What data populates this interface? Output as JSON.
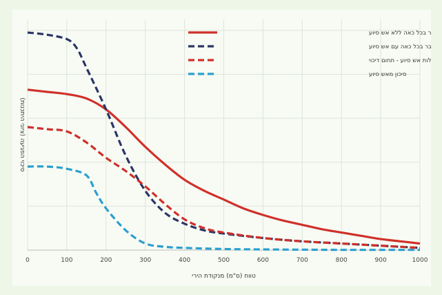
{
  "chart_data": {
    "type": "line",
    "xlabel": "טווח (ס\"מ) מנקודת הירי",
    "ylabel": "סיכוי הפגיעה (ציוני היתכנות)",
    "xlim": [
      0,
      1000
    ],
    "ylim": [
      0,
      1.05
    ],
    "x_ticks": [
      "0",
      "100",
      "200",
      "300",
      "400",
      "500",
      "600",
      "700",
      "800",
      "900",
      "1000"
    ],
    "grid": true,
    "legend_position": "top-right",
    "series": [
      {
        "name": "סיכון כתוצאה המצטבר בכל כאה ללא אש סיוע",
        "color": "#d0302a",
        "style": "solid",
        "x": [
          0,
          50,
          100,
          150,
          200,
          250,
          300,
          350,
          400,
          450,
          500,
          550,
          600,
          650,
          700,
          750,
          800,
          850,
          900,
          950,
          1000
        ],
        "y": [
          0.73,
          0.72,
          0.71,
          0.69,
          0.64,
          0.56,
          0.47,
          0.39,
          0.32,
          0.27,
          0.23,
          0.19,
          0.16,
          0.135,
          0.115,
          0.095,
          0.08,
          0.065,
          0.05,
          0.04,
          0.03
        ]
      },
      {
        "name": "סיכון כתוצאה המצטבר בכל כאה עם אש סיוע",
        "color": "#2b3566",
        "style": "dashed",
        "x": [
          0,
          50,
          100,
          125,
          150,
          200,
          250,
          300,
          350,
          400,
          450,
          500,
          600,
          700,
          800,
          900,
          1000
        ],
        "y": [
          0.99,
          0.98,
          0.96,
          0.92,
          0.83,
          0.64,
          0.43,
          0.27,
          0.17,
          0.12,
          0.09,
          0.075,
          0.055,
          0.04,
          0.03,
          0.02,
          0.01
        ]
      },
      {
        "name": "יעילות אש סיוע - תחום דיכוי",
        "color": "#d0302a",
        "style": "dashed",
        "x": [
          0,
          50,
          100,
          150,
          200,
          250,
          300,
          350,
          400,
          450,
          500,
          600,
          700,
          800,
          900,
          1000
        ],
        "y": [
          0.56,
          0.55,
          0.54,
          0.49,
          0.42,
          0.36,
          0.29,
          0.21,
          0.14,
          0.1,
          0.08,
          0.055,
          0.04,
          0.03,
          0.02,
          0.01
        ]
      },
      {
        "name": "סיכון מאש סיוע",
        "color": "#2a9fd0",
        "style": "dashed",
        "x": [
          0,
          50,
          100,
          150,
          175,
          200,
          250,
          300,
          350,
          400,
          500,
          600,
          700,
          800,
          900,
          1000
        ],
        "y": [
          0.38,
          0.38,
          0.37,
          0.34,
          0.26,
          0.19,
          0.09,
          0.03,
          0.015,
          0.01,
          0.005,
          0.003,
          0.002,
          0.001,
          0.001,
          0.001
        ]
      }
    ]
  }
}
